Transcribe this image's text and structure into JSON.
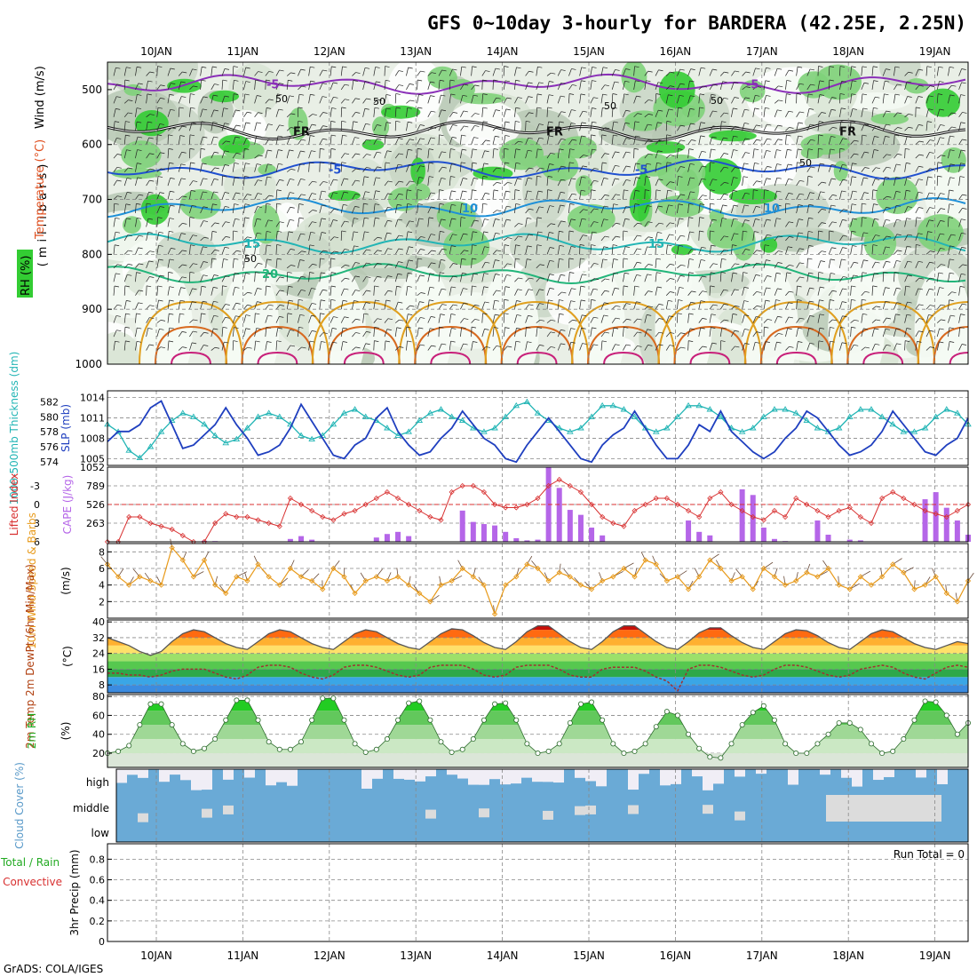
{
  "title": "GFS 0~10day 3-hourly for BARDERA (42.25E, 2.25N)",
  "credit": "GrADS: COLA/IGES",
  "date_ticks": [
    "10JAN",
    "11JAN",
    "12JAN",
    "13JAN",
    "14JAN",
    "15JAN",
    "16JAN",
    "17JAN",
    "18JAN",
    "19JAN"
  ],
  "colors": {
    "rh_green": "#33cc33",
    "slp": "#1f3fbf",
    "thickness": "#22b5b5",
    "lifted_index": "#d83030",
    "cape": "#b566e8",
    "wind_speed": "#e89a1a",
    "temp_line": "#555555",
    "dewpt_line": "#a03030",
    "rh2m": "#22aa22",
    "cloud": "#6aaad6",
    "cloud_gap": "#f0eef6"
  },
  "chart_data": [
    {
      "panel": "upper-air",
      "type": "heatmap",
      "y_axis_label": "(millibars)",
      "legend_labels": {
        "wind": "Wind (m/s)",
        "temperature": "Temperature (°C)",
        "rh": "RH (%)"
      },
      "yticks": [
        500,
        600,
        700,
        800,
        900,
        1000
      ],
      "ylim": [
        1000,
        450
      ],
      "isotherm_labels": [
        "-5",
        "-5",
        "FR",
        "FR",
        "FR",
        "-5",
        "-5",
        "10",
        "10",
        "15",
        "15",
        "20"
      ],
      "isotherm_levels_mb": {
        "-5": 490,
        "FR": 575,
        "5": 645,
        "10": 715,
        "15": 780,
        "20": 835
      },
      "rh_labels": [
        "50",
        "50",
        "50",
        "50",
        "50",
        "50"
      ]
    },
    {
      "panel": "slp-thickness",
      "type": "line",
      "left_label": "1000-500mb Thickness (dm)",
      "right_label": "SLP (mb)",
      "y_left_ticks": [
        574,
        576,
        578,
        580,
        582
      ],
      "y_right_ticks": [
        1005,
        1008,
        1011,
        1014
      ],
      "slp_ylim": [
        1004,
        1015
      ],
      "thick_ylim": [
        573.5,
        583.5
      ],
      "x_days": [
        0,
        0.125,
        0.25,
        0.375,
        0.5,
        0.625,
        0.75,
        0.875,
        1,
        1.125,
        1.25,
        1.375,
        1.5,
        1.625,
        1.75,
        1.875,
        2,
        2.125,
        2.25,
        2.375,
        2.5,
        2.625,
        2.75,
        2.875,
        3,
        3.125,
        3.25,
        3.375,
        3.5,
        3.625,
        3.75,
        3.875,
        4,
        4.125,
        4.25,
        4.375,
        4.5,
        4.625,
        4.75,
        4.875,
        5,
        5.125,
        5.25,
        5.375,
        5.5,
        5.625,
        5.75,
        5.875,
        6,
        6.125,
        6.25,
        6.375,
        6.5,
        6.625,
        6.75,
        6.875,
        7,
        7.125,
        7.25,
        7.375,
        7.5,
        7.625,
        7.75,
        7.875,
        8,
        8.125,
        8.25,
        8.375,
        8.5,
        8.625,
        8.75,
        8.875,
        9,
        9.125,
        9.25,
        9.375,
        9.5,
        9.625,
        9.75,
        9.875,
        10
      ],
      "slp": [
        1007.5,
        1009,
        1009,
        1010,
        1012.5,
        1013.5,
        1010,
        1006.5,
        1007,
        1008.5,
        1010,
        1012.5,
        1010,
        1008,
        1005.5,
        1006,
        1007,
        1009.5,
        1013,
        1010.5,
        1008,
        1005.5,
        1005,
        1007,
        1008,
        1011,
        1012.5,
        1009,
        1007,
        1005.5,
        1006,
        1008,
        1009.5,
        1012,
        1010,
        1008,
        1007,
        1005,
        1004.5,
        1007,
        1009,
        1011,
        1009,
        1007,
        1005,
        1004.5,
        1007,
        1008.5,
        1009.5,
        1012,
        1009.5,
        1007,
        1005,
        1005,
        1007,
        1010,
        1009,
        1012,
        1009,
        1007.5,
        1006,
        1005,
        1006,
        1008,
        1009.5,
        1012,
        1011,
        1009,
        1007,
        1005.5,
        1006,
        1007,
        1009,
        1012,
        1010,
        1008,
        1006,
        1005.5,
        1007,
        1008,
        1011
      ],
      "thickness": [
        579,
        578,
        575.5,
        574.5,
        576,
        578,
        579.5,
        580.5,
        580,
        579,
        577.5,
        576.5,
        577,
        578.5,
        580,
        580.5,
        580,
        579,
        577.5,
        577,
        577.5,
        579,
        580.5,
        581,
        580,
        579.5,
        578.5,
        577.5,
        578,
        579.5,
        580.5,
        581,
        580,
        579.5,
        578.5,
        578,
        578.5,
        580,
        581.5,
        582,
        580.5,
        579.5,
        578.5,
        578,
        578.5,
        580,
        581.5,
        581.5,
        581,
        580,
        578.5,
        578,
        578.5,
        580,
        581.5,
        581.5,
        581,
        580,
        578.5,
        578,
        578.5,
        580,
        581,
        581,
        580.5,
        579.5,
        578.5,
        578,
        578.5,
        580,
        581,
        581,
        580,
        579,
        578,
        578,
        578.5,
        580,
        581,
        580.5,
        579
      ]
    },
    {
      "panel": "cape-lifted-index",
      "type": "bar",
      "left_label": "Lifted Index",
      "right_label": "CAPE (J/kg)",
      "y_left_ticks": [
        "-3",
        "0",
        "3",
        "6"
      ],
      "y_right_ticks": [
        263,
        526,
        789,
        1052
      ],
      "cape_ylim": [
        0,
        1052
      ],
      "li_range": [
        -6,
        6
      ],
      "x_days": [
        0,
        0.125,
        0.25,
        0.375,
        0.5,
        0.625,
        0.75,
        0.875,
        1,
        1.125,
        1.25,
        1.375,
        1.5,
        1.625,
        1.75,
        1.875,
        2,
        2.125,
        2.25,
        2.375,
        2.5,
        2.625,
        2.75,
        2.875,
        3,
        3.125,
        3.25,
        3.375,
        3.5,
        3.625,
        3.75,
        3.875,
        4,
        4.125,
        4.25,
        4.375,
        4.5,
        4.625,
        4.75,
        4.875,
        5,
        5.125,
        5.25,
        5.375,
        5.5,
        5.625,
        5.75,
        5.875,
        6,
        6.125,
        6.25,
        6.375,
        6.5,
        6.625,
        6.75,
        6.875,
        7,
        7.125,
        7.25,
        7.375,
        7.5,
        7.625,
        7.75,
        7.875,
        8,
        8.125,
        8.25,
        8.375,
        8.5,
        8.625,
        8.75,
        8.875,
        9,
        9.125,
        9.25,
        9.375,
        9.5,
        9.625,
        9.75,
        9.875,
        10
      ],
      "lifted_index": [
        6,
        6,
        2,
        2,
        3,
        3.5,
        4,
        5,
        6,
        6,
        3,
        1.5,
        2,
        2,
        2.5,
        3,
        3.5,
        -1,
        0,
        1,
        2,
        2.5,
        1.5,
        1,
        0,
        -1,
        -2,
        -1,
        0,
        1,
        2,
        2.5,
        -2,
        -3,
        -3,
        -2,
        0,
        0.5,
        0.5,
        0,
        -1,
        -3,
        -4,
        -3,
        -2,
        0,
        2,
        3,
        3.5,
        1,
        0,
        -1,
        -1,
        0,
        1,
        2,
        -1,
        -2,
        0,
        1,
        2,
        2.5,
        1,
        2,
        -1,
        0,
        1,
        2,
        1,
        0.5,
        2,
        3,
        -1,
        -2,
        -1,
        0,
        1,
        1.5,
        2,
        1,
        0
      ],
      "cape": [
        0,
        0,
        0,
        0,
        0,
        0,
        0,
        0,
        0,
        15,
        10,
        0,
        0,
        0,
        0,
        0,
        0,
        40,
        80,
        30,
        0,
        0,
        0,
        0,
        0,
        60,
        110,
        140,
        80,
        0,
        0,
        0,
        0,
        440,
        280,
        250,
        230,
        140,
        50,
        20,
        30,
        1052,
        760,
        450,
        380,
        200,
        90,
        0,
        0,
        0,
        0,
        0,
        0,
        0,
        300,
        140,
        90,
        0,
        0,
        740,
        660,
        200,
        40,
        10,
        0,
        0,
        300,
        100,
        0,
        30,
        20,
        0,
        0,
        0,
        0,
        0,
        600,
        700,
        480,
        300,
        100
      ]
    },
    {
      "panel": "wind-10m",
      "type": "line",
      "left_label": "10m Wind Speed & Barbs",
      "unit": "(m/s)",
      "yticks": [
        2,
        4,
        6,
        8
      ],
      "ylim": [
        0,
        9
      ],
      "x_days": [
        0,
        0.125,
        0.25,
        0.375,
        0.5,
        0.625,
        0.75,
        0.875,
        1,
        1.125,
        1.25,
        1.375,
        1.5,
        1.625,
        1.75,
        1.875,
        2,
        2.125,
        2.25,
        2.375,
        2.5,
        2.625,
        2.75,
        2.875,
        3,
        3.125,
        3.25,
        3.375,
        3.5,
        3.625,
        3.75,
        3.875,
        4,
        4.125,
        4.25,
        4.375,
        4.5,
        4.625,
        4.75,
        4.875,
        5,
        5.125,
        5.25,
        5.375,
        5.5,
        5.625,
        5.75,
        5.875,
        6,
        6.125,
        6.25,
        6.375,
        6.5,
        6.625,
        6.75,
        6.875,
        7,
        7.125,
        7.25,
        7.375,
        7.5,
        7.625,
        7.75,
        7.875,
        8,
        8.125,
        8.25,
        8.375,
        8.5,
        8.625,
        8.75,
        8.875,
        9,
        9.125,
        9.25,
        9.375,
        9.5,
        9.625,
        9.75,
        9.875,
        10
      ],
      "speed": [
        6.5,
        5,
        4,
        5,
        4.5,
        4,
        8.5,
        7,
        5,
        7,
        4,
        3,
        5,
        4.5,
        6.5,
        5,
        4,
        6,
        5,
        4.5,
        3.5,
        6,
        5,
        3,
        4.5,
        5,
        4.5,
        5,
        4,
        3,
        2,
        4,
        4.5,
        6,
        5,
        4,
        0.5,
        4,
        5,
        6.5,
        6,
        4.5,
        5.5,
        5,
        4,
        3.5,
        4.5,
        5,
        6,
        5,
        7,
        6.5,
        4.5,
        5,
        3.5,
        5,
        7,
        6,
        4.5,
        5,
        3.5,
        6,
        5,
        4,
        4.5,
        5.5,
        5,
        6,
        4,
        3.5,
        5,
        4,
        5,
        6.5,
        5.5,
        3.5,
        4,
        5,
        3,
        2,
        4.5
      ]
    },
    {
      "panel": "temp-dewpt",
      "type": "area",
      "left_label": "2m Temp 2m DewPt (6hr Min/Max)",
      "unit": "(°C)",
      "yticks": [
        8,
        16,
        24,
        32,
        40
      ],
      "ylim": [
        4,
        41
      ],
      "x_days": [
        0,
        0.125,
        0.25,
        0.375,
        0.5,
        0.625,
        0.75,
        0.875,
        1,
        1.125,
        1.25,
        1.375,
        1.5,
        1.625,
        1.75,
        1.875,
        2,
        2.125,
        2.25,
        2.375,
        2.5,
        2.625,
        2.75,
        2.875,
        3,
        3.125,
        3.25,
        3.375,
        3.5,
        3.625,
        3.75,
        3.875,
        4,
        4.125,
        4.25,
        4.375,
        4.5,
        4.625,
        4.75,
        4.875,
        5,
        5.125,
        5.25,
        5.375,
        5.5,
        5.625,
        5.75,
        5.875,
        6,
        6.125,
        6.25,
        6.375,
        6.5,
        6.625,
        6.75,
        6.875,
        7,
        7.125,
        7.25,
        7.375,
        7.5,
        7.625,
        7.75,
        7.875,
        8,
        8.125,
        8.25,
        8.375,
        8.5,
        8.625,
        8.75,
        8.875,
        9,
        9.125,
        9.25,
        9.375,
        9.5,
        9.625,
        9.75,
        9.875,
        10
      ],
      "temp": [
        32,
        30,
        28,
        25,
        23,
        25,
        30,
        34,
        36,
        35,
        32,
        29,
        27,
        26,
        30,
        34,
        36,
        35,
        32,
        29,
        27,
        26,
        30,
        34,
        36,
        35,
        32,
        29,
        27,
        26,
        30,
        34,
        36.5,
        36,
        33,
        29.5,
        27,
        26,
        30,
        35,
        38,
        38,
        34,
        30,
        27,
        26,
        30,
        35,
        38,
        38,
        34,
        30,
        27,
        26,
        30,
        34.5,
        37,
        37,
        33,
        29.5,
        27,
        26,
        30,
        34,
        36,
        35.5,
        33,
        29.5,
        27,
        26,
        30,
        34,
        36,
        35,
        32,
        29,
        27,
        26,
        28,
        30,
        29
      ],
      "dewpt": [
        14,
        14,
        13,
        13,
        12,
        13,
        15,
        16,
        16,
        16,
        14,
        12,
        11,
        13,
        17,
        18,
        18,
        17,
        14,
        12,
        11,
        13,
        17,
        18,
        18,
        17,
        15,
        13,
        12,
        13,
        17,
        18,
        18,
        18,
        16,
        13,
        12,
        13,
        17,
        18,
        18,
        18,
        16,
        13,
        12,
        12,
        16,
        17,
        17,
        17,
        15,
        12,
        10,
        5,
        16,
        18,
        18,
        17,
        15,
        13,
        12,
        13,
        16,
        18,
        18,
        17,
        15,
        13,
        12,
        13,
        16,
        17,
        18,
        17,
        14,
        12,
        11,
        14,
        17,
        18,
        17
      ]
    },
    {
      "panel": "rh-2m",
      "type": "area",
      "left_label": "2m RH",
      "unit": "(%)",
      "yticks": [
        20,
        40,
        60,
        80
      ],
      "ylim": [
        5,
        82
      ],
      "x_days": [
        0,
        0.125,
        0.25,
        0.375,
        0.5,
        0.625,
        0.75,
        0.875,
        1,
        1.125,
        1.25,
        1.375,
        1.5,
        1.625,
        1.75,
        1.875,
        2,
        2.125,
        2.25,
        2.375,
        2.5,
        2.625,
        2.75,
        2.875,
        3,
        3.125,
        3.25,
        3.375,
        3.5,
        3.625,
        3.75,
        3.875,
        4,
        4.125,
        4.25,
        4.375,
        4.5,
        4.625,
        4.75,
        4.875,
        5,
        5.125,
        5.25,
        5.375,
        5.5,
        5.625,
        5.75,
        5.875,
        6,
        6.125,
        6.25,
        6.375,
        6.5,
        6.625,
        6.75,
        6.875,
        7,
        7.125,
        7.25,
        7.375,
        7.5,
        7.625,
        7.75,
        7.875,
        8,
        8.125,
        8.25,
        8.375,
        8.5,
        8.625,
        8.75,
        8.875,
        9,
        9.125,
        9.25,
        9.375,
        9.5,
        9.625,
        9.75,
        9.875,
        10
      ],
      "rh": [
        20,
        22,
        28,
        50,
        72,
        72,
        50,
        30,
        22,
        25,
        35,
        55,
        76,
        76,
        55,
        32,
        24,
        24,
        32,
        55,
        78,
        78,
        55,
        30,
        21,
        24,
        35,
        55,
        73,
        75,
        55,
        32,
        21,
        24,
        35,
        55,
        72,
        73,
        55,
        30,
        20,
        22,
        30,
        52,
        72,
        74,
        55,
        30,
        20,
        22,
        30,
        48,
        64,
        60,
        40,
        25,
        16,
        15,
        30,
        50,
        63,
        70,
        55,
        30,
        20,
        20,
        30,
        40,
        52,
        52,
        45,
        30,
        20,
        22,
        35,
        55,
        75,
        74,
        60,
        40,
        52
      ]
    },
    {
      "panel": "cloud-cover",
      "type": "bar",
      "left_label": "Cloud Cover (%)",
      "rows": [
        "high",
        "middle",
        "low"
      ]
    },
    {
      "panel": "precip",
      "type": "bar",
      "left_label": "3hr Precip (mm)",
      "series_labels": [
        "Total / Rain",
        "Convective"
      ],
      "yticks": [
        "0",
        "0.2",
        "0.4",
        "0.6",
        "0.8"
      ],
      "ylim": [
        0,
        0.95
      ],
      "run_total": "Run Total = 0",
      "values": []
    }
  ]
}
